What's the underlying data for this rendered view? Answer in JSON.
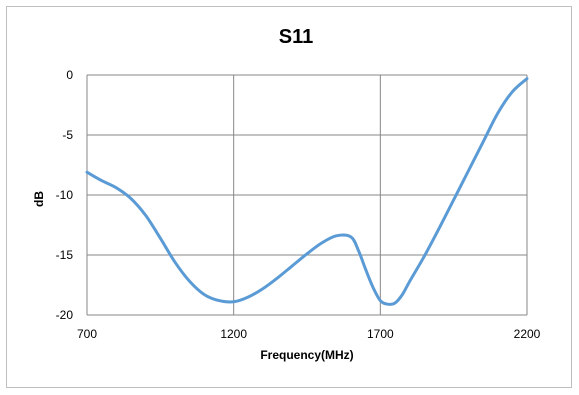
{
  "chart_data": {
    "type": "line",
    "title": "S11",
    "xlabel": "Frequency(MHz)",
    "ylabel": "dB",
    "xlim": [
      700,
      2200
    ],
    "ylim": [
      -20,
      0
    ],
    "xticks": [
      700,
      1200,
      1700,
      2200
    ],
    "yticks": [
      0,
      -5,
      -10,
      -15,
      -20
    ],
    "grid": true,
    "legend": "none",
    "line_color": "#5b9bd5",
    "series": [
      {
        "x": [
          700,
          750,
          800,
          850,
          900,
          950,
          1000,
          1050,
          1100,
          1150,
          1200,
          1250,
          1300,
          1350,
          1400,
          1450,
          1500,
          1550,
          1600,
          1625,
          1650,
          1675,
          1700,
          1725,
          1750,
          1775,
          1800,
          1850,
          1900,
          1950,
          2000,
          2050,
          2100,
          2150,
          2200
        ],
        "y": [
          -8.1,
          -8.8,
          -9.4,
          -10.3,
          -11.7,
          -13.6,
          -15.6,
          -17.2,
          -18.3,
          -18.8,
          -18.9,
          -18.5,
          -17.8,
          -16.9,
          -15.9,
          -14.9,
          -14.0,
          -13.4,
          -13.5,
          -14.6,
          -16.2,
          -17.7,
          -18.8,
          -19.1,
          -19.0,
          -18.3,
          -17.2,
          -15.1,
          -12.8,
          -10.4,
          -8.0,
          -5.6,
          -3.2,
          -1.4,
          -0.3
        ]
      }
    ]
  }
}
